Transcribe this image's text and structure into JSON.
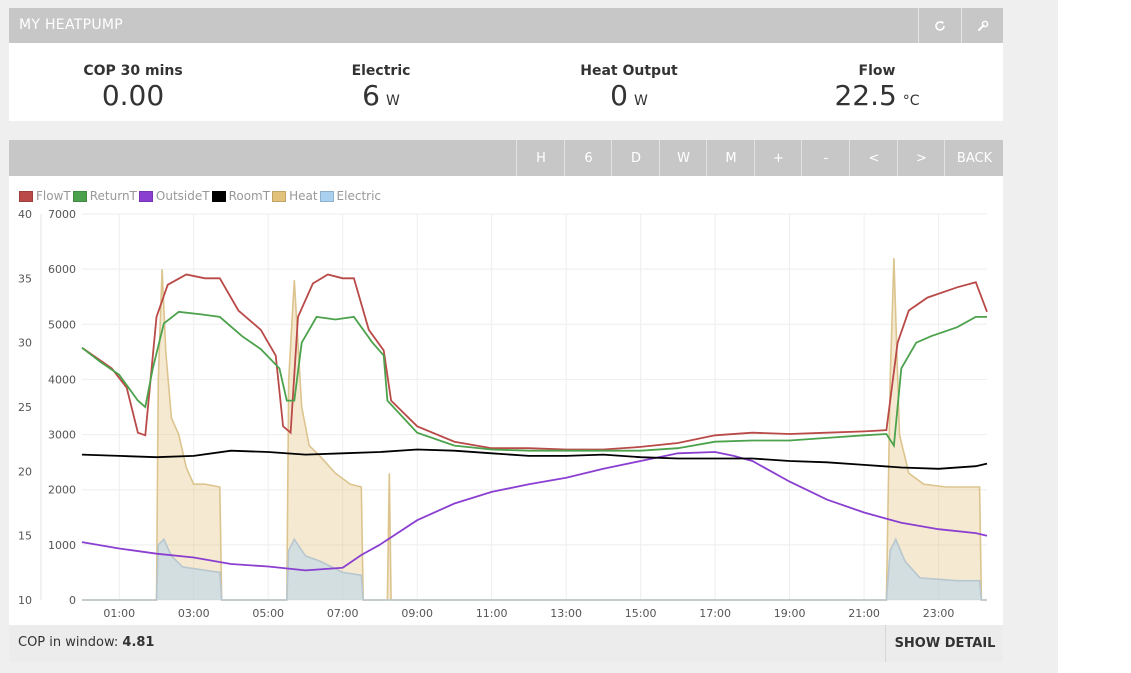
{
  "header": {
    "title": "MY HEATPUMP",
    "refresh_icon": "refresh-icon",
    "settings_icon": "wrench-icon"
  },
  "stats": [
    {
      "label": "COP 30 mins",
      "value": "0.00",
      "unit": ""
    },
    {
      "label": "Electric",
      "value": "6",
      "unit": "W"
    },
    {
      "label": "Heat Output",
      "value": "0",
      "unit": "W"
    },
    {
      "label": "Flow",
      "value": "22.5",
      "unit": "°C"
    }
  ],
  "toolbar": {
    "buttons": [
      "H",
      "6",
      "D",
      "W",
      "M",
      "+",
      "-",
      "<",
      ">",
      "BACK"
    ]
  },
  "footer": {
    "cop_label": "COP in window:",
    "cop_value": "4.81",
    "show_detail": "SHOW DETAIL"
  },
  "chart_data": {
    "type": "line",
    "legend": [
      {
        "name": "FlowT",
        "color": "#b94a48"
      },
      {
        "name": "ReturnT",
        "color": "#4ca24c"
      },
      {
        "name": "OutsideT",
        "color": "#8a3fd1"
      },
      {
        "name": "RoomT",
        "color": "#000000"
      },
      {
        "name": "Heat",
        "color": "#e2c27a"
      },
      {
        "name": "Electric",
        "color": "#a9d0ef"
      }
    ],
    "y_left": {
      "ticks": [
        "10",
        "15",
        "20",
        "25",
        "30",
        "35",
        "40"
      ],
      "range": [
        10,
        40
      ],
      "unit": "°C"
    },
    "y_right": {
      "ticks": [
        "0",
        "1000",
        "2000",
        "3000",
        "4000",
        "5000",
        "6000",
        "7000"
      ],
      "range": [
        0,
        7000
      ],
      "unit": "W"
    },
    "x_ticks": [
      "01:00",
      "03:00",
      "05:00",
      "07:00",
      "09:00",
      "11:00",
      "13:00",
      "15:00",
      "17:00",
      "19:00",
      "21:00",
      "23:00"
    ],
    "x_range_hours": [
      0,
      24
    ],
    "series": [
      {
        "name": "FlowT",
        "axis": "left",
        "points": [
          [
            0,
            29.6
          ],
          [
            0.3,
            29.0
          ],
          [
            0.8,
            28.0
          ],
          [
            1.2,
            26.5
          ],
          [
            1.5,
            23.0
          ],
          [
            1.7,
            22.8
          ],
          [
            2.0,
            32.0
          ],
          [
            2.3,
            34.5
          ],
          [
            2.8,
            35.3
          ],
          [
            3.3,
            35.0
          ],
          [
            3.7,
            35.0
          ],
          [
            4.2,
            32.5
          ],
          [
            4.8,
            31.0
          ],
          [
            5.2,
            29.0
          ],
          [
            5.4,
            23.5
          ],
          [
            5.6,
            23.0
          ],
          [
            5.8,
            32.0
          ],
          [
            6.2,
            34.6
          ],
          [
            6.6,
            35.3
          ],
          [
            7.0,
            35.0
          ],
          [
            7.3,
            35.0
          ],
          [
            7.7,
            31.0
          ],
          [
            8.1,
            29.4
          ],
          [
            8.3,
            25.5
          ],
          [
            9.0,
            23.5
          ],
          [
            10,
            22.3
          ],
          [
            11,
            21.8
          ],
          [
            12,
            21.8
          ],
          [
            13,
            21.7
          ],
          [
            14,
            21.7
          ],
          [
            15,
            21.9
          ],
          [
            16,
            22.2
          ],
          [
            17,
            22.8
          ],
          [
            18,
            23.0
          ],
          [
            19,
            22.9
          ],
          [
            20,
            23.0
          ],
          [
            21,
            23.1
          ],
          [
            21.6,
            23.2
          ],
          [
            21.9,
            30.0
          ],
          [
            22.2,
            32.5
          ],
          [
            22.7,
            33.5
          ],
          [
            23.5,
            34.3
          ],
          [
            24.0,
            34.7
          ],
          [
            24.3,
            32.4
          ]
        ]
      },
      {
        "name": "ReturnT",
        "axis": "left",
        "points": [
          [
            0,
            29.6
          ],
          [
            0.5,
            28.5
          ],
          [
            1.0,
            27.5
          ],
          [
            1.5,
            25.5
          ],
          [
            1.7,
            25.0
          ],
          [
            1.9,
            28.0
          ],
          [
            2.2,
            31.5
          ],
          [
            2.6,
            32.4
          ],
          [
            3.2,
            32.2
          ],
          [
            3.7,
            32.0
          ],
          [
            4.3,
            30.5
          ],
          [
            4.8,
            29.5
          ],
          [
            5.3,
            28.0
          ],
          [
            5.5,
            25.5
          ],
          [
            5.7,
            25.5
          ],
          [
            5.9,
            30.0
          ],
          [
            6.3,
            32.0
          ],
          [
            6.8,
            31.8
          ],
          [
            7.3,
            32.0
          ],
          [
            7.8,
            30.0
          ],
          [
            8.1,
            29.0
          ],
          [
            8.2,
            25.5
          ],
          [
            9.0,
            23.0
          ],
          [
            10,
            22.0
          ],
          [
            11,
            21.7
          ],
          [
            12,
            21.6
          ],
          [
            13,
            21.6
          ],
          [
            14,
            21.6
          ],
          [
            15,
            21.6
          ],
          [
            16,
            21.8
          ],
          [
            17,
            22.3
          ],
          [
            18,
            22.4
          ],
          [
            19,
            22.4
          ],
          [
            20,
            22.6
          ],
          [
            21,
            22.8
          ],
          [
            21.6,
            22.9
          ],
          [
            21.8,
            22.0
          ],
          [
            22.0,
            28.0
          ],
          [
            22.4,
            30.0
          ],
          [
            22.8,
            30.5
          ],
          [
            23.5,
            31.2
          ],
          [
            24.0,
            32.0
          ],
          [
            24.3,
            32.0
          ]
        ]
      },
      {
        "name": "OutsideT",
        "axis": "left",
        "points": [
          [
            0,
            14.5
          ],
          [
            1,
            14.0
          ],
          [
            2,
            13.6
          ],
          [
            3,
            13.3
          ],
          [
            4,
            12.8
          ],
          [
            5,
            12.6
          ],
          [
            6,
            12.3
          ],
          [
            7,
            12.5
          ],
          [
            7.5,
            13.5
          ],
          [
            8,
            14.3
          ],
          [
            9,
            16.2
          ],
          [
            10,
            17.5
          ],
          [
            11,
            18.4
          ],
          [
            12,
            19.0
          ],
          [
            13,
            19.5
          ],
          [
            14,
            20.2
          ],
          [
            15,
            20.8
          ],
          [
            16,
            21.4
          ],
          [
            17,
            21.5
          ],
          [
            17.5,
            21.2
          ],
          [
            18,
            20.8
          ],
          [
            18.5,
            20.0
          ],
          [
            19,
            19.2
          ],
          [
            20,
            17.8
          ],
          [
            21,
            16.8
          ],
          [
            22,
            16.0
          ],
          [
            23,
            15.5
          ],
          [
            24,
            15.2
          ],
          [
            24.3,
            15.0
          ]
        ]
      },
      {
        "name": "RoomT",
        "axis": "left",
        "points": [
          [
            0,
            21.3
          ],
          [
            1,
            21.2
          ],
          [
            2,
            21.1
          ],
          [
            3,
            21.2
          ],
          [
            4,
            21.6
          ],
          [
            5,
            21.5
          ],
          [
            6,
            21.3
          ],
          [
            7,
            21.4
          ],
          [
            8,
            21.5
          ],
          [
            9,
            21.7
          ],
          [
            10,
            21.6
          ],
          [
            11,
            21.4
          ],
          [
            12,
            21.2
          ],
          [
            13,
            21.2
          ],
          [
            14,
            21.3
          ],
          [
            15,
            21.1
          ],
          [
            16,
            21.0
          ],
          [
            17,
            21.0
          ],
          [
            18,
            21.0
          ],
          [
            19,
            20.8
          ],
          [
            20,
            20.7
          ],
          [
            21,
            20.5
          ],
          [
            22,
            20.3
          ],
          [
            23,
            20.2
          ],
          [
            24,
            20.4
          ],
          [
            24.3,
            20.6
          ]
        ]
      },
      {
        "name": "Heat",
        "axis": "right",
        "points": [
          [
            0,
            0
          ],
          [
            2.0,
            0
          ],
          [
            2.05,
            4000
          ],
          [
            2.15,
            6000
          ],
          [
            2.25,
            4500
          ],
          [
            2.4,
            3300
          ],
          [
            2.6,
            3000
          ],
          [
            2.8,
            2400
          ],
          [
            3.0,
            2100
          ],
          [
            3.3,
            2100
          ],
          [
            3.7,
            2050
          ],
          [
            3.75,
            0
          ],
          [
            5.5,
            0
          ],
          [
            5.55,
            4000
          ],
          [
            5.7,
            5800
          ],
          [
            5.9,
            3500
          ],
          [
            6.1,
            2800
          ],
          [
            6.4,
            2600
          ],
          [
            6.8,
            2300
          ],
          [
            7.2,
            2100
          ],
          [
            7.5,
            2050
          ],
          [
            7.55,
            0
          ],
          [
            8.2,
            0
          ],
          [
            8.25,
            2300
          ],
          [
            8.3,
            0
          ],
          [
            21.6,
            0
          ],
          [
            21.7,
            4000
          ],
          [
            21.8,
            6200
          ],
          [
            21.95,
            3000
          ],
          [
            22.2,
            2300
          ],
          [
            22.6,
            2100
          ],
          [
            23.2,
            2050
          ],
          [
            24.1,
            2050
          ],
          [
            24.15,
            0
          ],
          [
            24.3,
            0
          ]
        ]
      },
      {
        "name": "Electric",
        "axis": "right",
        "points": [
          [
            0,
            0
          ],
          [
            2.0,
            0
          ],
          [
            2.05,
            1000
          ],
          [
            2.2,
            1100
          ],
          [
            2.4,
            800
          ],
          [
            2.7,
            600
          ],
          [
            3.2,
            550
          ],
          [
            3.7,
            500
          ],
          [
            3.75,
            0
          ],
          [
            5.5,
            0
          ],
          [
            5.55,
            900
          ],
          [
            5.7,
            1100
          ],
          [
            6.0,
            800
          ],
          [
            6.4,
            700
          ],
          [
            7.0,
            500
          ],
          [
            7.5,
            450
          ],
          [
            7.55,
            0
          ],
          [
            21.6,
            0
          ],
          [
            21.7,
            900
          ],
          [
            21.85,
            1100
          ],
          [
            22.1,
            700
          ],
          [
            22.5,
            400
          ],
          [
            23.5,
            350
          ],
          [
            24.1,
            350
          ],
          [
            24.15,
            0
          ],
          [
            24.3,
            0
          ]
        ]
      }
    ]
  }
}
